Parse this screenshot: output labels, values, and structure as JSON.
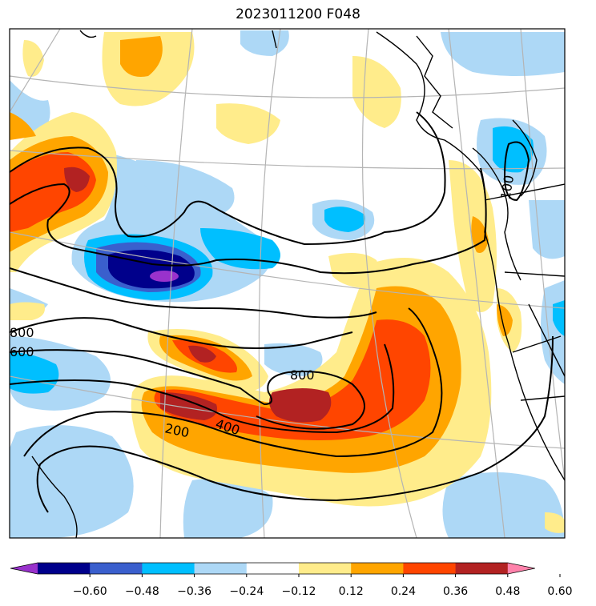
{
  "title": "2023011200 F048",
  "colorbar": {
    "ticks": [
      "−0.60",
      "−0.48",
      "−0.36",
      "−0.24",
      "−0.12",
      "0.12",
      "0.24",
      "0.36",
      "0.48",
      "0.60"
    ],
    "colors": [
      "#9932cc",
      "#00008b",
      "#3a5fcd",
      "#00bfff",
      "#add8f6",
      "#ffffff",
      "#ffec8b",
      "#ffa500",
      "#ff4500",
      "#b22222",
      "#ff82ab"
    ]
  },
  "contour_labels": [
    "800",
    "600",
    "800",
    "200",
    "400",
    "100"
  ],
  "colors": {
    "coast": "#000000",
    "grid": "#b4b4b4",
    "contour": "#000000"
  }
}
